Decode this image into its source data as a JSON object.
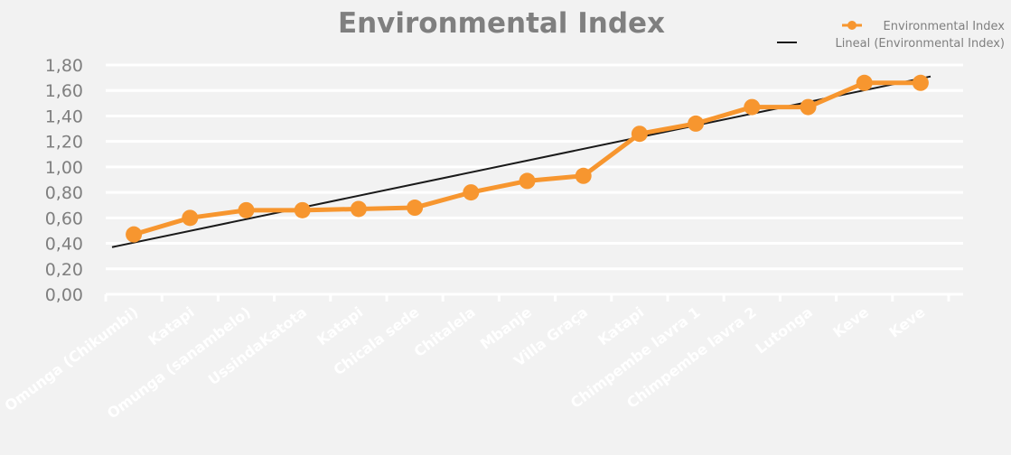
{
  "chart_data": {
    "type": "line",
    "title": "Environmental Index",
    "categories": [
      "Omunga (Chikumbi)",
      "Katapi",
      "Omunga (sanambelo)",
      "UssindaKatota",
      "Katapi",
      "Chicala sede",
      "Chitalela",
      "Mbanje",
      "Villa Graça",
      "Katapi",
      "Chimpembe lavra 1",
      "Chimpembe lavra 2",
      "Lutonga",
      "Keve",
      "Keve"
    ],
    "series": [
      {
        "name": "Environmental Index",
        "color": "#f7962f",
        "values": [
          0.47,
          0.6,
          0.66,
          0.66,
          0.67,
          0.68,
          0.8,
          0.89,
          0.93,
          1.26,
          1.34,
          1.47,
          1.47,
          1.66,
          1.66
        ]
      }
    ],
    "trendline": {
      "name": "Lineal (Environmental Index)",
      "type": "linear",
      "color": "#1a1a1a",
      "start": 0.37,
      "end": 1.71
    },
    "ylim": [
      0,
      1.8
    ],
    "yticks": [
      "0,00",
      "0,20",
      "0,40",
      "0,60",
      "0,80",
      "1,00",
      "1,20",
      "1,40",
      "1,60",
      "1,80"
    ],
    "xlabel": "",
    "ylabel": "",
    "grid": true,
    "legend_position": "top-right"
  }
}
